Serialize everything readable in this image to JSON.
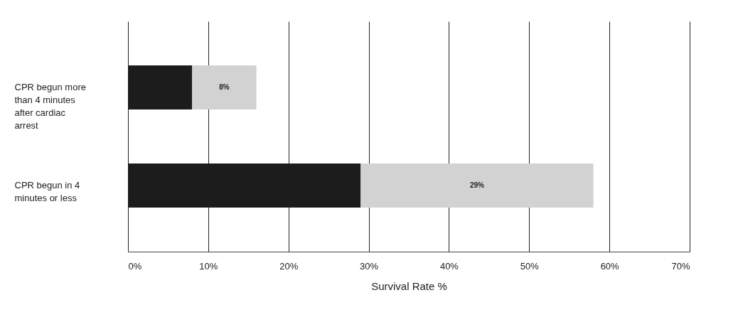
{
  "chart_data": {
    "type": "bar",
    "orientation": "horizontal",
    "stacked": true,
    "categories": [
      "CPR begun more than 4 minutes after cardiac arrest",
      "CPR begun in 4 minutes or less"
    ],
    "series": [
      {
        "color": "#1c1c1c",
        "values": [
          8,
          29
        ]
      },
      {
        "color": "#d2d2d2",
        "values": [
          8,
          29
        ],
        "value_labels": [
          "8%",
          "29%"
        ]
      }
    ],
    "xlabel": "Survival Rate %",
    "xlim": [
      0,
      70
    ],
    "xticks": [
      {
        "value": 0,
        "label": "0%"
      },
      {
        "value": 10,
        "label": "10%"
      },
      {
        "value": 20,
        "label": "20%"
      },
      {
        "value": 30,
        "label": "30%"
      },
      {
        "value": 40,
        "label": "40%"
      },
      {
        "value": 50,
        "label": "50%"
      },
      {
        "value": 60,
        "label": "60%"
      },
      {
        "value": 70,
        "label": "70%"
      }
    ],
    "grid": "x"
  }
}
